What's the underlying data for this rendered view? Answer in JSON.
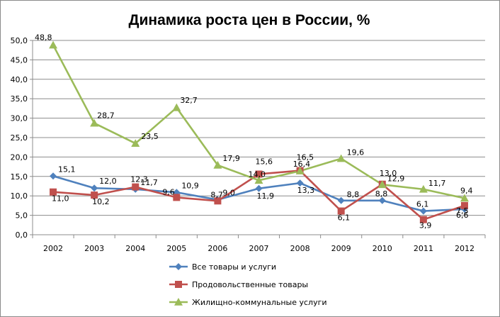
{
  "chart_data": {
    "type": "line",
    "title": "Динамика роста цен в России, %",
    "xlabel": "",
    "ylabel": "",
    "ylim": [
      0,
      50
    ],
    "ytick_step": 5,
    "y_tick_labels": [
      "0,0",
      "5,0",
      "10,0",
      "15,0",
      "20,0",
      "25,0",
      "30,0",
      "35,0",
      "40,0",
      "45,0",
      "50,0"
    ],
    "grid": true,
    "legend_position": "bottom",
    "categories": [
      "2002",
      "2003",
      "2004",
      "2005",
      "2006",
      "2007",
      "2008",
      "2009",
      "2010",
      "2011",
      "2012"
    ],
    "series": [
      {
        "name": "Все товары и услуги",
        "color": "#4F81BD",
        "marker": "diamond",
        "values": [
          15.1,
          12.0,
          11.7,
          10.9,
          9.0,
          11.9,
          13.3,
          8.8,
          8.8,
          6.1,
          6.6
        ],
        "labels": [
          "15,1",
          "12,0",
          "11,7",
          "10,9",
          "9,0",
          "11,9",
          "13,3",
          "8,8",
          "8,8",
          "6,1",
          "6,6"
        ]
      },
      {
        "name": "Продовольственные товары",
        "color": "#C0504D",
        "marker": "square",
        "values": [
          11.0,
          10.2,
          12.3,
          9.6,
          8.7,
          15.6,
          16.5,
          6.1,
          13.0,
          3.9,
          7.5
        ],
        "labels": [
          "11,0",
          "10,2",
          "12,3",
          "9,6",
          "8,7",
          "15,6",
          "16,5",
          "6,1",
          "13,0",
          "3,9",
          "7,5"
        ]
      },
      {
        "name": "Жилищно-коммунальные услуги",
        "color": "#9BBB59",
        "marker": "triangle",
        "values": [
          48.8,
          28.7,
          23.5,
          32.7,
          17.9,
          14.0,
          16.4,
          19.6,
          12.9,
          11.7,
          9.4
        ],
        "labels": [
          "48,8",
          "28,7",
          "23,5",
          "32,7",
          "17,9",
          "14,0",
          "16,4",
          "19,6",
          "12,9",
          "11,7",
          "9,4"
        ]
      }
    ]
  }
}
